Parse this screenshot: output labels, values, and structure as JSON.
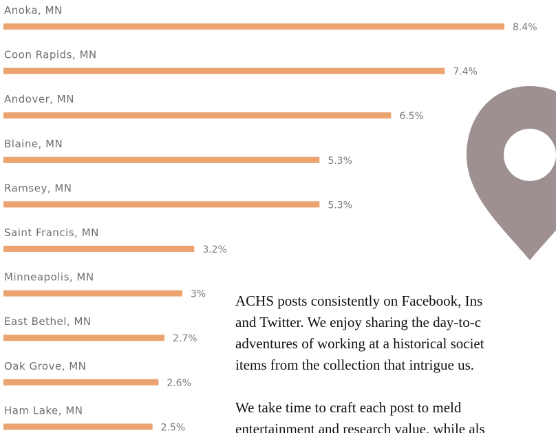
{
  "chart_data": {
    "type": "bar",
    "orientation": "horizontal",
    "color": "#eba46f",
    "categories": [
      "Anoka, MN",
      "Coon Rapids, MN",
      "Andover, MN",
      "Blaine, MN",
      "Ramsey, MN",
      "Saint Francis, MN",
      "Minneapolis, MN",
      "East Bethel, MN",
      "Oak Grove, MN",
      "Ham Lake, MN"
    ],
    "values": [
      8.4,
      7.4,
      6.5,
      5.3,
      5.3,
      3.2,
      3,
      2.7,
      2.6,
      2.5
    ],
    "value_labels": [
      "8.4%",
      "7.4%",
      "6.5%",
      "5.3%",
      "5.3%",
      "3.2%",
      "3%",
      "2.7%",
      "2.6%",
      "2.5%"
    ]
  },
  "paragraphs": [
    [
      "ACHS posts consistently on Facebook, Ins",
      "and Twitter. We enjoy sharing the day-to-c",
      "adventures of working at a historical societ",
      "items from the collection that intrigue us."
    ],
    [
      "We take time to craft each post to meld",
      "entertainment and research value, while als"
    ]
  ]
}
